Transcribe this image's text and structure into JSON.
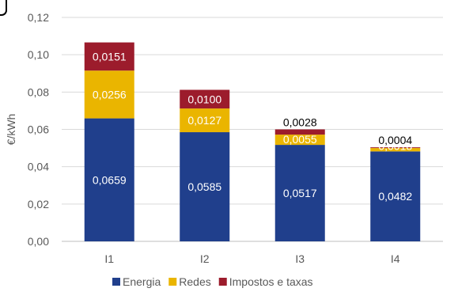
{
  "chart_data": {
    "type": "bar",
    "stacked": true,
    "categories": [
      "I1",
      "I2",
      "I3",
      "I4"
    ],
    "series": [
      {
        "name": "Energia",
        "color": "#203f8c",
        "values": [
          0.0659,
          0.0585,
          0.0517,
          0.0482
        ],
        "labels": [
          "0,0659",
          "0,0585",
          "0,0517",
          "0,0482"
        ]
      },
      {
        "name": "Redes",
        "color": "#eab500",
        "values": [
          0.0256,
          0.0127,
          0.0055,
          0.0018
        ],
        "labels": [
          "0,0256",
          "0,0127",
          "0,0055",
          "0,0018"
        ]
      },
      {
        "name": "Impostos e taxas",
        "color": "#9c1c2c",
        "values": [
          0.0151,
          0.01,
          0.0028,
          0.0004
        ],
        "labels": [
          "0,0151",
          "0,0100",
          "0,0028",
          "0,0004"
        ]
      }
    ],
    "ylabel": "€/kWh",
    "ylim": [
      0,
      0.12
    ],
    "yticks": [
      0,
      0.02,
      0.04,
      0.06,
      0.08,
      0.1,
      0.12
    ],
    "ytick_labels": [
      "0,00",
      "0,02",
      "0,04",
      "0,06",
      "0,08",
      "0,10",
      "0,12"
    ],
    "grid": true,
    "legend": "bottom"
  }
}
